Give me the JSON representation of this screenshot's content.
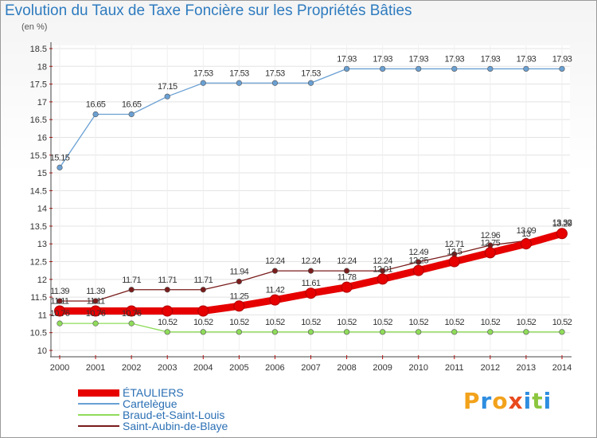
{
  "title": "Evolution du Taux de Taxe Foncière sur les Propriétés Bâties",
  "unit_label": "(en %)",
  "logo": {
    "letters": [
      {
        "char": "P",
        "color": "#f2a21b"
      },
      {
        "char": "r",
        "color": "#2e8ee0"
      },
      {
        "char": "o",
        "color": "#f2a21b"
      },
      {
        "char": "x",
        "color": "#e84a1e"
      },
      {
        "char": "i",
        "color": "#2e8ee0"
      },
      {
        "char": "t",
        "color": "#8cc63f"
      },
      {
        "char": "i",
        "color": "#2e8ee0"
      }
    ]
  },
  "chart_data": {
    "type": "line",
    "title": "Evolution du Taux de Taxe Foncière sur les Propriétés Bâties",
    "ylabel": "(en %)",
    "xlabel": "",
    "ylim": [
      10,
      18.5
    ],
    "yticks": [
      "10",
      "10.5",
      "11",
      "11.5",
      "12",
      "12.5",
      "13",
      "13.5",
      "14",
      "14.5",
      "15",
      "15.5",
      "16",
      "16.5",
      "17",
      "17.5",
      "18",
      "18.5"
    ],
    "x": [
      "2000",
      "2001",
      "2002",
      "2003",
      "2004",
      "2005",
      "2006",
      "2007",
      "2008",
      "2009",
      "2010",
      "2011",
      "2012",
      "2013",
      "2014"
    ],
    "series": [
      {
        "name": "ÉTAULIERS",
        "color": "#e60000",
        "values": [
          11.11,
          11.11,
          11.11,
          11.11,
          11.11,
          11.25,
          11.42,
          11.61,
          11.78,
          12.01,
          12.25,
          12.5,
          12.75,
          13.0,
          13.29
        ],
        "labels": [
          "11.11",
          "11.11",
          "",
          "",
          "",
          "11.25",
          "11.42",
          "11.61",
          "11.78",
          "12.01",
          "12.25",
          "12.5",
          "12.75",
          "13",
          "13.29"
        ]
      },
      {
        "name": "Cartelègue",
        "color": "#6aa0d3",
        "values": [
          15.15,
          16.65,
          16.65,
          17.15,
          17.53,
          17.53,
          17.53,
          17.53,
          17.93,
          17.93,
          17.93,
          17.93,
          17.93,
          17.93,
          17.93
        ],
        "labels": [
          "15.15",
          "16.65",
          "16.65",
          "17.15",
          "17.53",
          "17.53",
          "17.53",
          "17.53",
          "17.93",
          "17.93",
          "17.93",
          "17.93",
          "17.93",
          "17.93",
          "17.93"
        ]
      },
      {
        "name": "Braud-et-Saint-Louis",
        "color": "#8fdc5a",
        "values": [
          10.76,
          10.76,
          10.76,
          10.52,
          10.52,
          10.52,
          10.52,
          10.52,
          10.52,
          10.52,
          10.52,
          10.52,
          10.52,
          10.52,
          10.52
        ],
        "labels": [
          "10.76",
          "10.76",
          "10.76",
          "10.52",
          "10.52",
          "10.52",
          "10.52",
          "10.52",
          "10.52",
          "10.52",
          "10.52",
          "10.52",
          "10.52",
          "10.52",
          "10.52"
        ]
      },
      {
        "name": "Saint-Aubin-de-Blaye",
        "color": "#7a1c1c",
        "values": [
          11.39,
          11.39,
          11.71,
          11.71,
          11.71,
          11.94,
          12.24,
          12.24,
          12.24,
          12.24,
          12.49,
          12.71,
          12.96,
          13.09,
          13.32
        ],
        "labels": [
          "11.39",
          "11.39",
          "11.71",
          "11.71",
          "11.71",
          "11.94",
          "12.24",
          "12.24",
          "12.24",
          "12.24",
          "12.49",
          "12.71",
          "12.96",
          "13.09",
          "13.32"
        ]
      }
    ]
  }
}
